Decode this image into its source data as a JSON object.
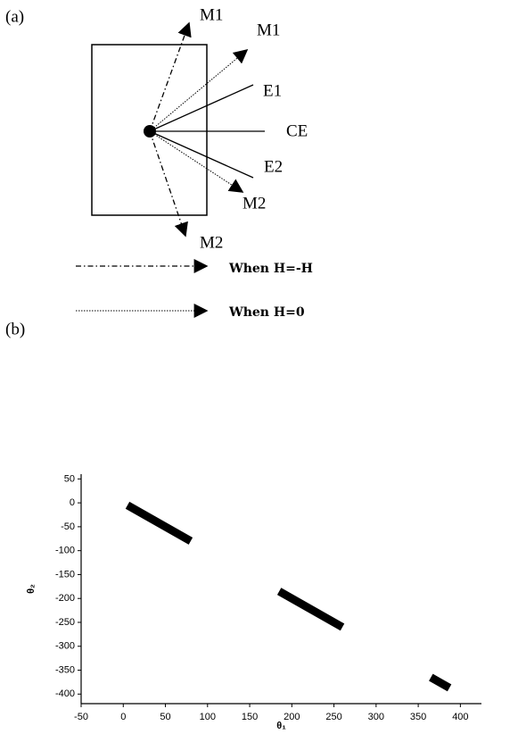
{
  "panel_a": {
    "label": "(a)",
    "arrows": {
      "m1_field": "M1",
      "m1_zero": "M1",
      "e1": "E1",
      "ce": "CE",
      "e2": "E2",
      "m2_zero": "M2",
      "m2_field": "M2"
    },
    "legend": {
      "field": "When H=-H",
      "zero": "When H=0"
    }
  },
  "panel_b_label": "(b)",
  "chart_data": {
    "type": "line",
    "x_label": "θ₁",
    "y_label": "θ₂",
    "x": [
      5,
      80,
      130,
      185,
      260,
      310,
      365,
      387
    ],
    "series": [
      {
        "color": "#000000",
        "values": [
          -5,
          -80,
          null,
          -185,
          -260,
          null,
          -365,
          -387
        ]
      }
    ],
    "xlim": [
      -50,
      425
    ],
    "ylim": [
      -420,
      60
    ],
    "xticks": [
      -50,
      0,
      50,
      100,
      150,
      200,
      250,
      300,
      350,
      400
    ],
    "yticks": [
      50,
      0,
      -50,
      -100,
      -150,
      -200,
      -250,
      -300,
      -350,
      -400
    ],
    "grid": false
  }
}
